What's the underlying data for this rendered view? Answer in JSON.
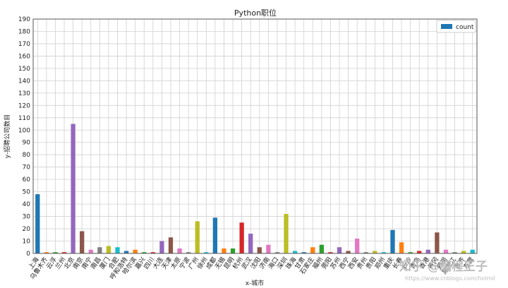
{
  "chart_data": {
    "type": "bar",
    "title": "Python职位",
    "xlabel": "x-城市",
    "ylabel": "y-招聘公司数目",
    "ylim": [
      0,
      190
    ],
    "yticks": [
      0,
      10,
      20,
      30,
      40,
      50,
      60,
      70,
      80,
      90,
      100,
      110,
      120,
      130,
      140,
      150,
      160,
      170,
      180,
      190
    ],
    "grid": true,
    "legend": {
      "entries": [
        "count"
      ],
      "placement": "top-right"
    },
    "categories": [
      "上海",
      "乌鲁木齐",
      "云浮",
      "兰州",
      "北京",
      "南京",
      "南宁",
      "南昌",
      "厦门",
      "合肥",
      "呼和浩特",
      "哈尔滨",
      "嘉兴",
      "四川",
      "大连",
      "天津",
      "太原",
      "宁波",
      "广州",
      "徐州",
      "成都",
      "无锡",
      "昆明",
      "杭州",
      "武汉",
      "沈阳",
      "济南",
      "海口",
      "深圳",
      "珠海",
      "甘肃",
      "石家庄",
      "福州",
      "莞阳",
      "苏州",
      "西宁",
      "西安",
      "贵州",
      "贵阳",
      "郑州",
      "重庆",
      "长春",
      "长沙",
      "青岛",
      "香港",
      "黄冈",
      "鹤岗",
      "黑龙江",
      "齐齐",
      "东营"
    ],
    "values": [
      48,
      1,
      1,
      1,
      105,
      18,
      3,
      5,
      6,
      5,
      2,
      3,
      1,
      1,
      10,
      13,
      4,
      1,
      26,
      1,
      29,
      4,
      4,
      25,
      16,
      5,
      7,
      1,
      32,
      2,
      1,
      5,
      7,
      1,
      5,
      2,
      12,
      1,
      2,
      1,
      19,
      9,
      1,
      2,
      3,
      17,
      3,
      1,
      2,
      3
    ],
    "colors": [
      "#1f77b4",
      "#ff7f0e",
      "#2ca02c",
      "#d62728",
      "#9467bd",
      "#8c564b",
      "#e377c2",
      "#7f7f7f",
      "#bcbd22",
      "#17becf"
    ]
  },
  "watermark": {
    "text": "知乎 @编程王子",
    "url": "https://www.cnblogs.com/holmil"
  }
}
